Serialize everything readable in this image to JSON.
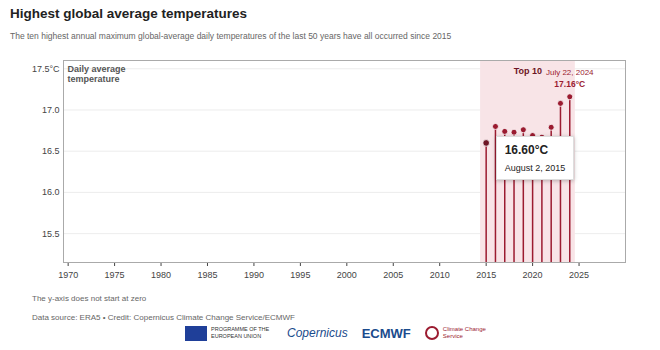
{
  "chart_data": {
    "type": "lollipop",
    "title": "Highest global average temperatures",
    "subtitle": "The ten highest annual maximum global-average daily temperatures of the last 50 years have all occurred since 2015",
    "y_label": "Daily average temperature",
    "x": [
      2015,
      2016,
      2017,
      2018,
      2019,
      2020,
      2021,
      2022,
      2023,
      2024
    ],
    "values": [
      16.6,
      16.8,
      16.74,
      16.73,
      16.76,
      16.69,
      16.67,
      16.79,
      17.08,
      17.16
    ],
    "color": "#9b1b30",
    "xlim": [
      1969.5,
      2030
    ],
    "xticks": [
      1970,
      1975,
      1980,
      1985,
      1990,
      1995,
      2000,
      2005,
      2010,
      2015,
      2020,
      2025
    ],
    "ylim": [
      15.15,
      17.6
    ],
    "yticks": [
      15.5,
      {
        "value": 16,
        "label": "16.0"
      },
      16.5,
      {
        "value": 17,
        "label": "17.0"
      },
      {
        "value": 17.5,
        "label": "17.5°C"
      }
    ],
    "grid": true,
    "band_label": "Top 10",
    "annotations": [
      {
        "x": 2015,
        "label": "16.60°C",
        "date": "August 2, 2015"
      },
      {
        "x": 2024,
        "label": "17.16°C",
        "date": "July 22, 2024"
      }
    ],
    "notes": [
      "The y-axis does not start at zero",
      "Data source: ERA5 • Credit: Copernicus Climate Change Service/ECMWF"
    ],
    "logos": [
      "PROGRAMME OF THE EUROPEAN UNION",
      "Copernicus",
      "ECMWF",
      "Climate Change Service"
    ]
  }
}
